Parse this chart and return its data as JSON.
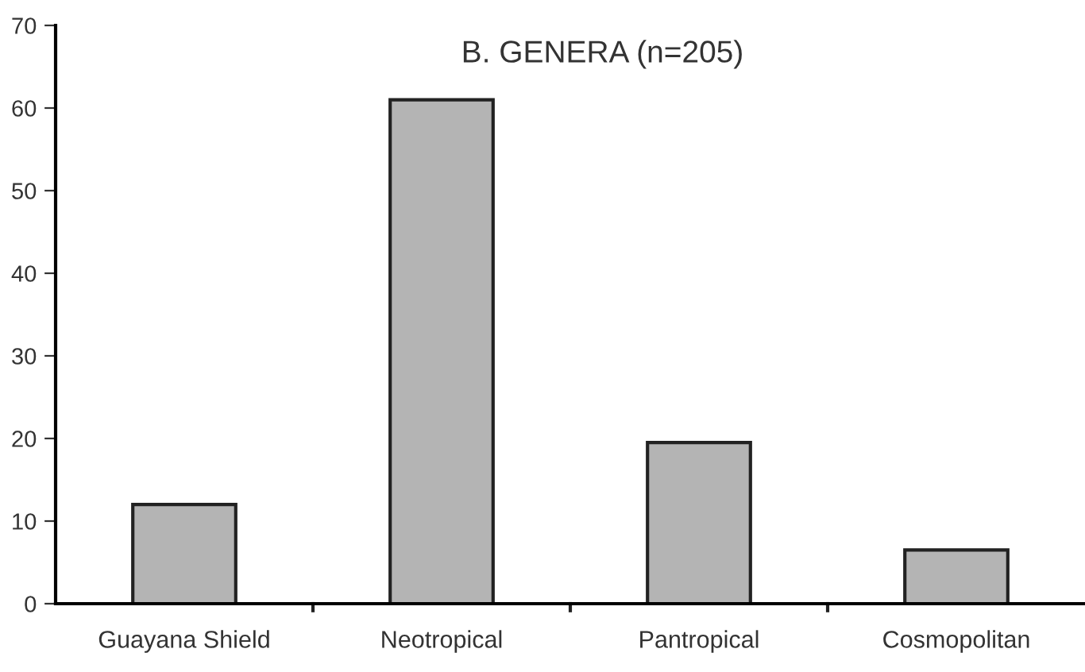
{
  "chart_data": {
    "type": "bar",
    "title": "B. GENERA (n=205)",
    "categories": [
      "Guayana Shield",
      "Neotropical",
      "Pantropical",
      "Cosmopolitan"
    ],
    "values": [
      12,
      61,
      19.5,
      6.5
    ],
    "color": "#b4b4b4",
    "ylim": [
      0,
      70
    ],
    "yticks": [
      0,
      10,
      20,
      30,
      40,
      50,
      60,
      70
    ],
    "grid": false
  }
}
